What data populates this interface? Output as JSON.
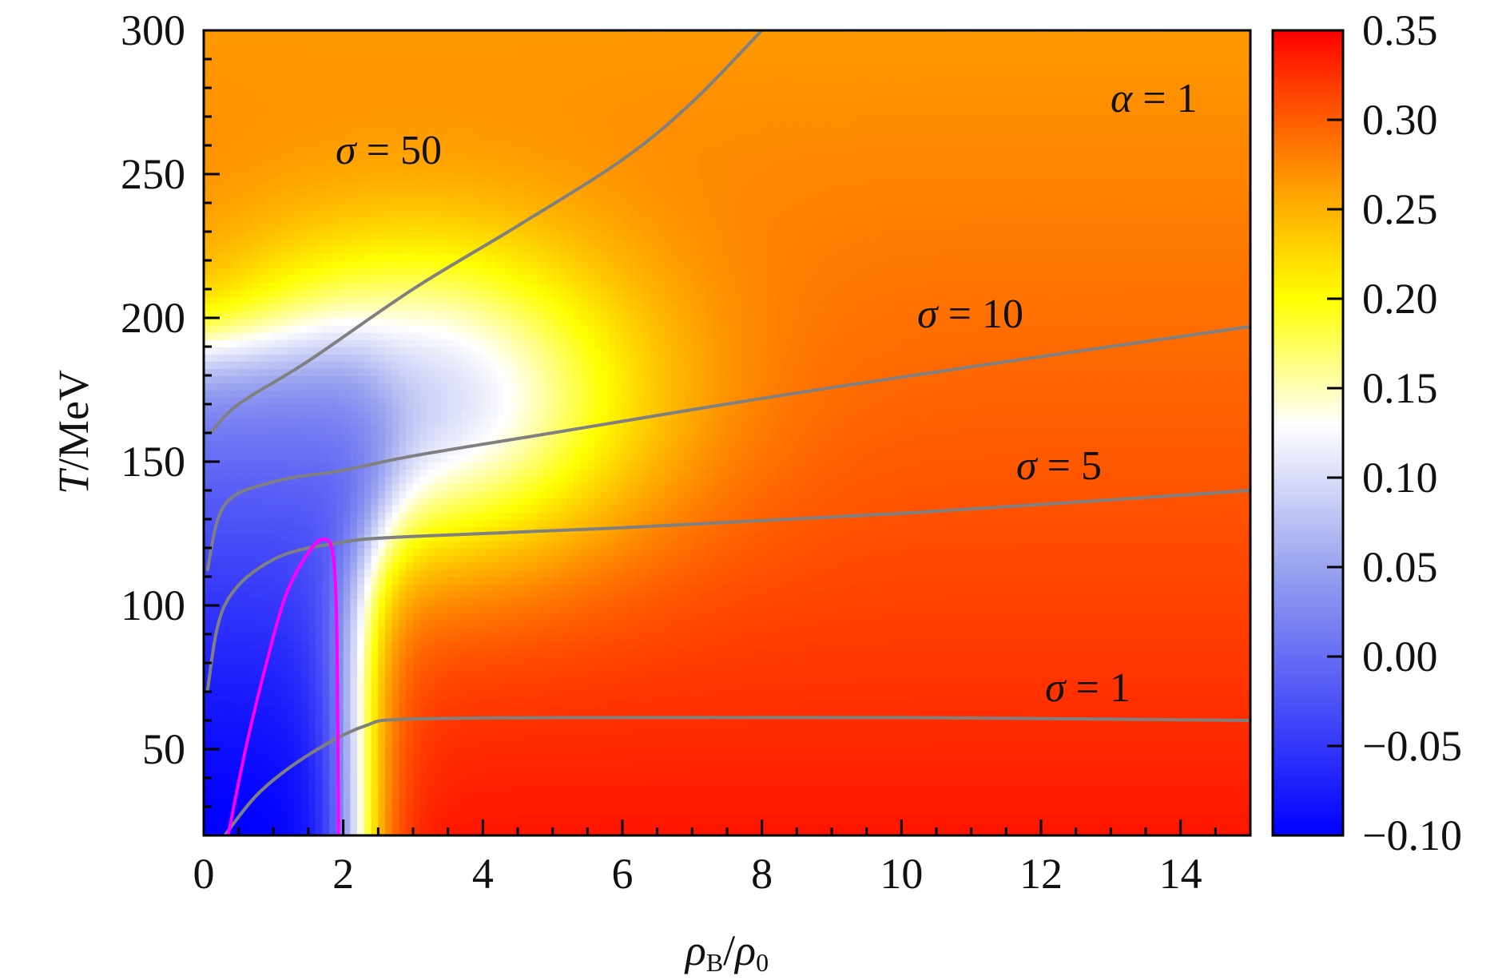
{
  "chart_data": {
    "type": "heatmap",
    "xlabel": {
      "main": "ρ",
      "sub": "B",
      "sep": "/",
      "main2": "ρ",
      "sub2": "0"
    },
    "ylabel": {
      "main": "T",
      "rest": "/MeV"
    },
    "xlim": [
      0,
      15
    ],
    "ylim": [
      20,
      300
    ],
    "x_ticks": [
      "0",
      "2",
      "4",
      "6",
      "8",
      "10",
      "12",
      "14"
    ],
    "x_tick_values": [
      0,
      2,
      4,
      6,
      8,
      10,
      12,
      14
    ],
    "y_ticks": [
      "50",
      "100",
      "150",
      "200",
      "250",
      "300"
    ],
    "y_tick_values": [
      50,
      100,
      150,
      200,
      250,
      300
    ],
    "colorbar": {
      "range": [
        -0.1,
        0.35
      ],
      "ticks": [
        "0.35",
        "0.30",
        "0.25",
        "0.20",
        "0.15",
        "0.10",
        "0.05",
        "0.00",
        "−0.05",
        "−0.10"
      ],
      "tick_values": [
        0.35,
        0.3,
        0.25,
        0.2,
        0.15,
        0.1,
        0.05,
        0.0,
        -0.05,
        -0.1
      ],
      "colors": [
        "#0000ff",
        "#9aa4ee",
        "#ffffff",
        "#ffff00",
        "#ffa200",
        "#ff3a00",
        "#ff0000"
      ],
      "color_stops": [
        -0.1,
        0.05,
        0.13,
        0.2,
        0.26,
        0.32,
        0.35
      ]
    },
    "contour_lines": [
      {
        "name": "σ = 50",
        "label": {
          "sym": "σ",
          "rest": " = 50"
        },
        "color": "#808080",
        "points": [
          [
            0.1,
            160
          ],
          [
            0.5,
            170
          ],
          [
            1.5,
            185
          ],
          [
            3,
            210
          ],
          [
            4.5,
            232
          ],
          [
            6,
            255
          ],
          [
            7,
            275
          ],
          [
            8,
            300
          ]
        ]
      },
      {
        "name": "σ = 10",
        "label": {
          "sym": "σ",
          "rest": " = 10"
        },
        "color": "#808080",
        "points": [
          [
            0.05,
            112
          ],
          [
            0.3,
            135
          ],
          [
            1,
            143
          ],
          [
            2,
            147
          ],
          [
            3,
            152
          ],
          [
            5,
            160
          ],
          [
            8,
            172
          ],
          [
            11,
            183
          ],
          [
            15,
            197
          ]
        ]
      },
      {
        "name": "σ = 5",
        "label": {
          "sym": "σ",
          "rest": " = 5"
        },
        "color": "#808080",
        "points": [
          [
            0.05,
            70
          ],
          [
            0.3,
            100
          ],
          [
            1,
            116
          ],
          [
            2,
            122
          ],
          [
            3,
            124
          ],
          [
            6,
            127
          ],
          [
            10,
            132
          ],
          [
            15,
            140
          ]
        ]
      },
      {
        "name": "σ = 1",
        "label": {
          "sym": "σ",
          "rest": " = 1"
        },
        "color": "#808080",
        "points": [
          [
            0.3,
            20
          ],
          [
            0.8,
            35
          ],
          [
            1.5,
            48
          ],
          [
            2.3,
            58
          ],
          [
            3,
            60.5
          ],
          [
            6,
            61
          ],
          [
            10,
            61
          ],
          [
            15,
            60
          ]
        ]
      },
      {
        "name": "α = 1",
        "label": {
          "sym": "α",
          "rest": " = 1"
        },
        "color": "#ff00ff",
        "points": [
          [
            0.35,
            20
          ],
          [
            0.6,
            50
          ],
          [
            0.9,
            80
          ],
          [
            1.2,
            105
          ],
          [
            1.55,
            120
          ],
          [
            1.75,
            123
          ],
          [
            1.85,
            118
          ],
          [
            1.9,
            100
          ],
          [
            1.92,
            60
          ],
          [
            1.93,
            20
          ]
        ]
      }
    ]
  }
}
